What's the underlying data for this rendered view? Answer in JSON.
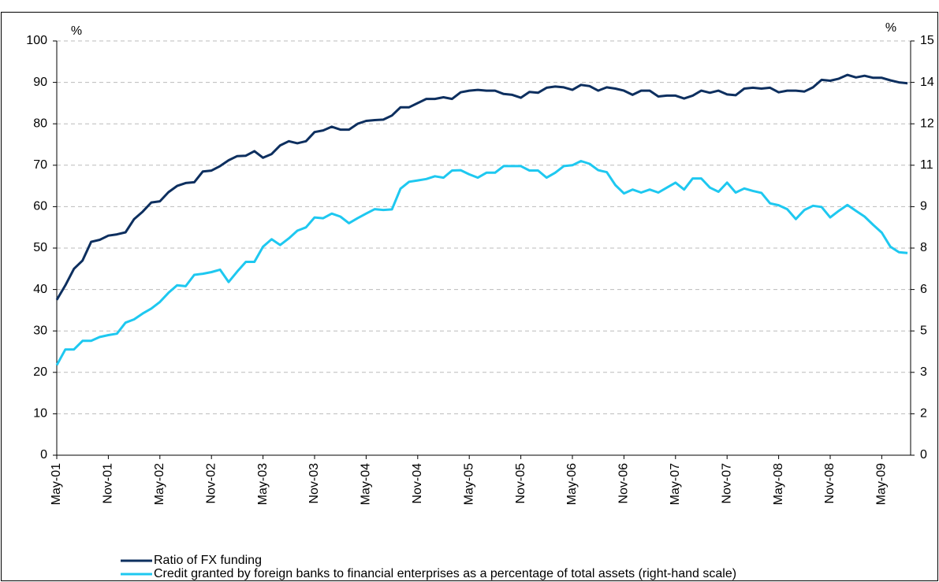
{
  "chart_data": {
    "type": "line",
    "categories": [
      "May-01",
      null,
      null,
      null,
      null,
      null,
      "Nov-01",
      null,
      null,
      null,
      null,
      null,
      "May-02",
      null,
      null,
      null,
      null,
      null,
      "Nov-02",
      null,
      null,
      null,
      null,
      null,
      "May-03",
      null,
      null,
      null,
      null,
      null,
      "Nov-03",
      null,
      null,
      null,
      null,
      null,
      "May-04",
      null,
      null,
      null,
      null,
      null,
      "Nov-04",
      null,
      null,
      null,
      null,
      null,
      "May-05",
      null,
      null,
      null,
      null,
      null,
      "Nov-05",
      null,
      null,
      null,
      null,
      null,
      "May-06",
      null,
      null,
      null,
      null,
      null,
      "Nov-06",
      null,
      null,
      null,
      null,
      null,
      "May-07",
      null,
      null,
      null,
      null,
      null,
      "Nov-07",
      null,
      null,
      null,
      null,
      null,
      "May-08",
      null,
      null,
      null,
      null,
      null,
      "Nov-08",
      null,
      null,
      null,
      null,
      null,
      "May-09",
      null,
      null,
      null
    ],
    "y_unit": "%",
    "y2_unit": "%",
    "ylim": [
      0,
      100
    ],
    "yticks": [
      0,
      10,
      20,
      30,
      40,
      50,
      60,
      70,
      80,
      90,
      100
    ],
    "y2lim": [
      0,
      15
    ],
    "y2ticks": [
      0,
      {
        "value": 1.5,
        "label": "2"
      },
      3,
      {
        "value": 4.5,
        "label": "5"
      },
      6,
      {
        "value": 7.5,
        "label": "8"
      },
      9,
      {
        "value": 10.5,
        "label": "11"
      },
      12,
      {
        "value": 13.5,
        "label": "14"
      },
      15
    ],
    "grid": true,
    "series": [
      {
        "name": "Ratio of FX funding",
        "color": "#0d2f5f",
        "values": [
          37.5,
          41,
          45,
          47,
          51.5,
          52,
          53,
          53.3,
          53.8,
          57,
          58.8,
          61,
          61.3,
          63.5,
          65,
          65.7,
          65.9,
          68.5,
          68.7,
          69.8,
          71.2,
          72.2,
          72.3,
          73.4,
          71.8,
          72.7,
          74.8,
          75.8,
          75.3,
          75.8,
          78,
          78.4,
          79.3,
          78.6,
          78.6,
          80,
          80.7,
          80.9,
          81,
          82,
          84,
          84,
          85,
          86,
          86,
          86.4,
          86,
          87.6,
          88,
          88.2,
          88,
          88,
          87.2,
          87,
          86.3,
          87.7,
          87.5,
          88.7,
          89,
          88.8,
          88.2,
          89.4,
          89.1,
          88,
          88.8,
          88.5,
          88,
          87,
          88,
          88,
          86.6,
          86.8,
          86.8,
          86.1,
          86.8,
          88,
          87.5,
          88,
          87.1,
          86.9,
          88.5,
          88.7,
          88.5,
          88.7,
          87.6,
          88,
          88,
          87.8,
          88.8,
          90.6,
          90.4,
          90.9,
          91.8,
          91.2,
          91.6,
          91.1,
          91.1,
          90.5,
          90,
          89.8
        ]
      },
      {
        "name": "Credit granted by foreign banks to financial enterprises as a percentage of total assets (right-hand scale)",
        "color": "#1ec8f0",
        "axis": "y2",
        "values": [
          3.26,
          3.83,
          3.83,
          4.14,
          4.14,
          4.28,
          4.35,
          4.4,
          4.8,
          4.92,
          5.13,
          5.31,
          5.55,
          5.88,
          6.15,
          6.12,
          6.53,
          6.57,
          6.63,
          6.72,
          6.27,
          6.65,
          7.0,
          7.0,
          7.55,
          7.82,
          7.61,
          7.85,
          8.13,
          8.25,
          8.61,
          8.58,
          8.75,
          8.64,
          8.4,
          8.58,
          8.75,
          8.91,
          8.88,
          8.9,
          9.65,
          9.9,
          9.95,
          10.0,
          10.1,
          10.05,
          10.31,
          10.32,
          10.17,
          10.05,
          10.23,
          10.23,
          10.47,
          10.47,
          10.47,
          10.31,
          10.31,
          10.05,
          10.23,
          10.47,
          10.5,
          10.65,
          10.55,
          10.32,
          10.25,
          9.78,
          9.48,
          9.62,
          9.51,
          9.62,
          9.51,
          9.69,
          9.87,
          9.62,
          10.02,
          10.02,
          9.69,
          9.54,
          9.87,
          9.51,
          9.66,
          9.57,
          9.5,
          9.12,
          9.05,
          8.91,
          8.55,
          8.88,
          9.03,
          8.99,
          8.61,
          8.85,
          9.06,
          8.85,
          8.64,
          8.34,
          8.06,
          7.55,
          7.35,
          7.32
        ]
      }
    ]
  }
}
